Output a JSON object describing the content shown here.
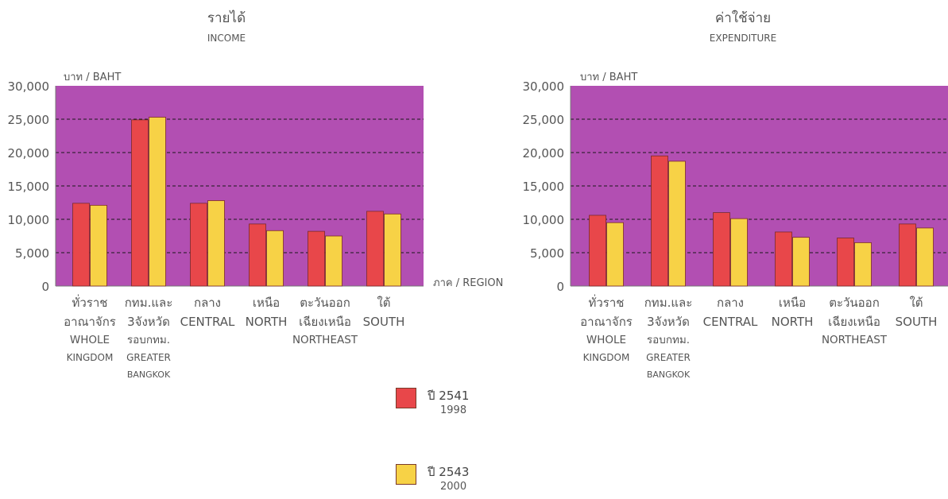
{
  "chart_data": [
    {
      "type": "bar",
      "title": "รายได้",
      "subtitle": "INCOME",
      "ylabel": "บาท / BAHT",
      "xlabel": "ภาค / REGION",
      "ylim": [
        0,
        30000
      ],
      "yticks": [
        "30,000",
        "25,000",
        "20,000",
        "15,000",
        "10,000",
        "5,000",
        "0"
      ],
      "categories": [
        [
          "ทั่วราช",
          "อาณาจักร",
          "WHOLE",
          "KINGDOM"
        ],
        [
          "กทม.และ",
          "3จังหวัด",
          "รอบกทม.",
          "GREATER",
          "BANGKOK"
        ],
        [
          "กลาง",
          "CENTRAL"
        ],
        [
          "เหนือ",
          "NORTH"
        ],
        [
          "ตะวันออก",
          "เฉียงเหนือ",
          "NORTHEAST"
        ],
        [
          "ใต้",
          "SOUTH"
        ]
      ],
      "series": [
        {
          "name": "ปี 2541 1998",
          "values": [
            12400,
            24900,
            12400,
            9300,
            8200,
            11200
          ]
        },
        {
          "name": "ปี 2543 2000",
          "values": [
            12100,
            25300,
            12800,
            8300,
            7500,
            10800
          ]
        }
      ],
      "grid": true,
      "background": "#b24fb2"
    },
    {
      "type": "bar",
      "title": "ค่าใช้จ่าย",
      "subtitle": "EXPENDITURE",
      "ylabel": "บาท / BAHT",
      "xlabel": "",
      "ylim": [
        0,
        30000
      ],
      "yticks": [
        "30,000",
        "25,000",
        "20,000",
        "15,000",
        "10,000",
        "5,000",
        "0"
      ],
      "categories": [
        [
          "ทั่วราช",
          "อาณาจักร",
          "WHOLE",
          "KINGDOM"
        ],
        [
          "กทม.และ",
          "3จังหวัด",
          "รอบกทม.",
          "GREATER",
          "BANGKOK"
        ],
        [
          "กลาง",
          "CENTRAL"
        ],
        [
          "เหนือ",
          "NORTH"
        ],
        [
          "ตะวันออก",
          "เฉียงเหนือ",
          "NORTHEAST"
        ],
        [
          "ใต้",
          "SOUTH"
        ]
      ],
      "series": [
        {
          "name": "ปี 2541 1998",
          "values": [
            10600,
            19500,
            11000,
            8100,
            7200,
            9300
          ]
        },
        {
          "name": "ปี 2543 2000",
          "values": [
            9500,
            18700,
            10100,
            7300,
            6500,
            8700
          ]
        }
      ],
      "grid": true,
      "background": "#b24fb2"
    }
  ],
  "legend": [
    {
      "th": "ปี 2541",
      "en": "1998",
      "color": "#e8474a"
    },
    {
      "th": "ปี 2543",
      "en": "2000",
      "color": "#f7d246"
    }
  ],
  "colors": {
    "series_1": "#e8474a",
    "series_2": "#f7d246",
    "plot_bg": "#b24fb2"
  }
}
